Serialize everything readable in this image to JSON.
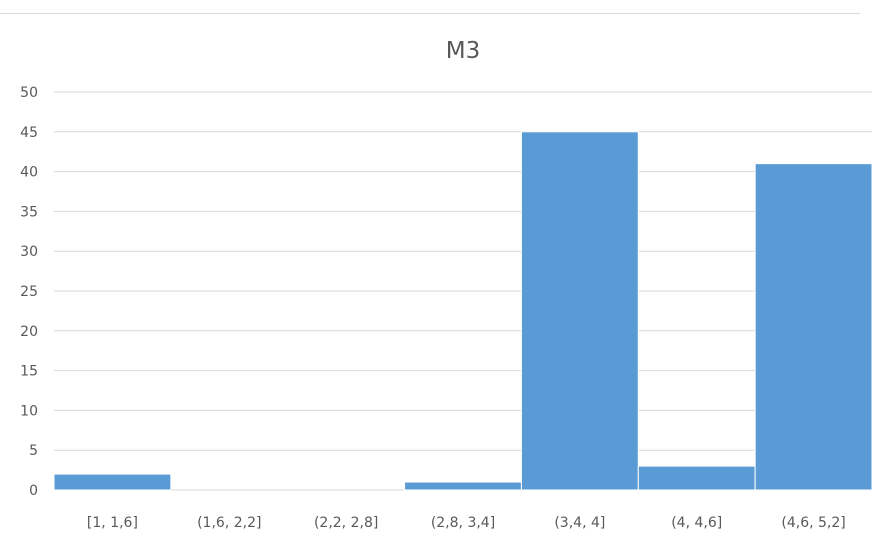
{
  "chart_data": {
    "type": "bar",
    "title": "M3",
    "xlabel": "",
    "ylabel": "",
    "categories": [
      "[1, 1,6]",
      "(1,6, 2,2]",
      "(2,2, 2,8]",
      "(2,8, 3,4]",
      "(3,4, 4]",
      "(4, 4,6]",
      "(4,6, 5,2]"
    ],
    "values": [
      2,
      0,
      0,
      1,
      45,
      3,
      41
    ],
    "ylim": [
      0,
      50
    ],
    "yticks": [
      0,
      5,
      10,
      15,
      20,
      25,
      30,
      35,
      40,
      45,
      50
    ],
    "grid": true,
    "legend": false,
    "bar_color": "#5b9bd5"
  }
}
